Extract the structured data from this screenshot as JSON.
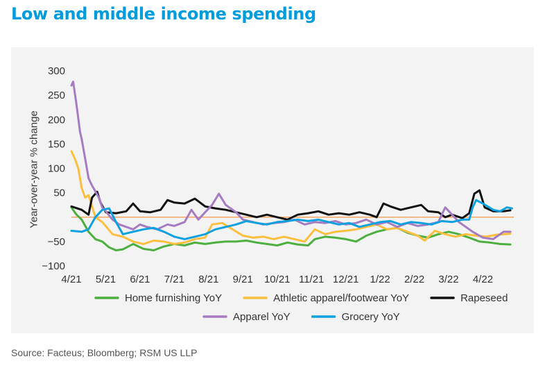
{
  "title": "Low and middle income spending",
  "source": "Source: Facteus; Bloomberg; RSM US LLP",
  "chart_data": {
    "type": "line",
    "ylabel": "Year-over-year % change",
    "xlabel": "",
    "ylim": [
      -100,
      300
    ],
    "yticks": [
      300,
      250,
      200,
      150,
      100,
      50,
      -50,
      -100
    ],
    "xlim": [
      0,
      12.9
    ],
    "xticks": [
      {
        "x": 0,
        "label": "4/21"
      },
      {
        "x": 1,
        "label": "5/21"
      },
      {
        "x": 2,
        "label": "6/21"
      },
      {
        "x": 3,
        "label": "7/21"
      },
      {
        "x": 4,
        "label": "8/21"
      },
      {
        "x": 5,
        "label": "9/21"
      },
      {
        "x": 6,
        "label": "10/21"
      },
      {
        "x": 7,
        "label": "11/21"
      },
      {
        "x": 8,
        "label": "12/21"
      },
      {
        "x": 9,
        "label": "1/22"
      },
      {
        "x": 10,
        "label": "2/22"
      },
      {
        "x": 11,
        "label": "3/22"
      },
      {
        "x": 12,
        "label": "4/22"
      }
    ],
    "zero_line_color": "#f2a766",
    "grid": false,
    "legend_position": "bottom",
    "series": [
      {
        "name": "Home furnishing YoY",
        "color": "#4caf3f",
        "legend_row": 0,
        "points": [
          [
            0,
            20
          ],
          [
            0.15,
            5
          ],
          [
            0.3,
            -5
          ],
          [
            0.5,
            -30
          ],
          [
            0.7,
            -45
          ],
          [
            0.9,
            -50
          ],
          [
            1.1,
            -62
          ],
          [
            1.3,
            -68
          ],
          [
            1.5,
            -66
          ],
          [
            1.8,
            -55
          ],
          [
            2.1,
            -65
          ],
          [
            2.4,
            -68
          ],
          [
            2.7,
            -60
          ],
          [
            3.0,
            -55
          ],
          [
            3.3,
            -58
          ],
          [
            3.6,
            -52
          ],
          [
            3.9,
            -55
          ],
          [
            4.2,
            -52
          ],
          [
            4.5,
            -50
          ],
          [
            4.8,
            -50
          ],
          [
            5.1,
            -48
          ],
          [
            5.4,
            -52
          ],
          [
            5.7,
            -55
          ],
          [
            6.0,
            -58
          ],
          [
            6.3,
            -52
          ],
          [
            6.6,
            -56
          ],
          [
            6.9,
            -58
          ],
          [
            7.1,
            -45
          ],
          [
            7.4,
            -40
          ],
          [
            7.7,
            -42
          ],
          [
            8.0,
            -45
          ],
          [
            8.3,
            -50
          ],
          [
            8.6,
            -38
          ],
          [
            8.9,
            -30
          ],
          [
            9.2,
            -25
          ],
          [
            9.5,
            -22
          ],
          [
            9.8,
            -32
          ],
          [
            10.1,
            -38
          ],
          [
            10.4,
            -42
          ],
          [
            10.7,
            -35
          ],
          [
            11.0,
            -30
          ],
          [
            11.3,
            -35
          ],
          [
            11.6,
            -42
          ],
          [
            11.9,
            -50
          ],
          [
            12.2,
            -52
          ],
          [
            12.5,
            -55
          ],
          [
            12.8,
            -56
          ]
        ]
      },
      {
        "name": "Athletic apparel/footwear YoY",
        "color": "#fbbf3d",
        "legend_row": 0,
        "points": [
          [
            0,
            135
          ],
          [
            0.1,
            120
          ],
          [
            0.2,
            100
          ],
          [
            0.3,
            60
          ],
          [
            0.4,
            40
          ],
          [
            0.5,
            45
          ],
          [
            0.7,
            0
          ],
          [
            0.9,
            -10
          ],
          [
            1.2,
            -35
          ],
          [
            1.5,
            -40
          ],
          [
            1.8,
            -50
          ],
          [
            2.1,
            -55
          ],
          [
            2.4,
            -48
          ],
          [
            2.7,
            -50
          ],
          [
            3.0,
            -55
          ],
          [
            3.3,
            -52
          ],
          [
            3.6,
            -45
          ],
          [
            3.9,
            -42
          ],
          [
            4.1,
            -15
          ],
          [
            4.4,
            -12
          ],
          [
            4.7,
            -25
          ],
          [
            5.0,
            -38
          ],
          [
            5.3,
            -42
          ],
          [
            5.6,
            -40
          ],
          [
            5.9,
            -45
          ],
          [
            6.2,
            -40
          ],
          [
            6.5,
            -45
          ],
          [
            6.8,
            -50
          ],
          [
            7.1,
            -25
          ],
          [
            7.4,
            -35
          ],
          [
            7.7,
            -30
          ],
          [
            8.0,
            -28
          ],
          [
            8.3,
            -25
          ],
          [
            8.6,
            -20
          ],
          [
            8.9,
            -15
          ],
          [
            9.2,
            -25
          ],
          [
            9.5,
            -22
          ],
          [
            9.8,
            -30
          ],
          [
            10.1,
            -38
          ],
          [
            10.3,
            -48
          ],
          [
            10.6,
            -28
          ],
          [
            10.9,
            -35
          ],
          [
            11.2,
            -40
          ],
          [
            11.5,
            -35
          ],
          [
            11.8,
            -38
          ],
          [
            12.1,
            -40
          ],
          [
            12.4,
            -36
          ],
          [
            12.8,
            -34
          ]
        ]
      },
      {
        "name": "Rapeseed",
        "color": "#111111",
        "legend_row": 0,
        "points": [
          [
            0,
            22
          ],
          [
            0.3,
            15
          ],
          [
            0.5,
            5
          ],
          [
            0.6,
            40
          ],
          [
            0.75,
            52
          ],
          [
            0.85,
            30
          ],
          [
            1.0,
            10
          ],
          [
            1.3,
            8
          ],
          [
            1.6,
            12
          ],
          [
            1.8,
            28
          ],
          [
            2.0,
            12
          ],
          [
            2.3,
            10
          ],
          [
            2.6,
            15
          ],
          [
            2.8,
            35
          ],
          [
            3.0,
            30
          ],
          [
            3.3,
            28
          ],
          [
            3.6,
            38
          ],
          [
            3.9,
            22
          ],
          [
            4.2,
            18
          ],
          [
            4.5,
            15
          ],
          [
            4.8,
            10
          ],
          [
            5.1,
            5
          ],
          [
            5.4,
            0
          ],
          [
            5.7,
            5
          ],
          [
            6.0,
            0
          ],
          [
            6.3,
            -5
          ],
          [
            6.6,
            5
          ],
          [
            6.9,
            8
          ],
          [
            7.2,
            12
          ],
          [
            7.5,
            5
          ],
          [
            7.8,
            8
          ],
          [
            8.1,
            5
          ],
          [
            8.4,
            10
          ],
          [
            8.7,
            5
          ],
          [
            8.9,
            0
          ],
          [
            9.1,
            28
          ],
          [
            9.3,
            22
          ],
          [
            9.6,
            15
          ],
          [
            9.9,
            20
          ],
          [
            10.2,
            25
          ],
          [
            10.4,
            12
          ],
          [
            10.7,
            10
          ],
          [
            10.9,
            0
          ],
          [
            11.1,
            5
          ],
          [
            11.4,
            -2
          ],
          [
            11.6,
            8
          ],
          [
            11.75,
            48
          ],
          [
            11.9,
            55
          ],
          [
            12.05,
            20
          ],
          [
            12.3,
            12
          ],
          [
            12.6,
            12
          ],
          [
            12.8,
            14
          ]
        ]
      },
      {
        "name": "Apparel YoY",
        "color": "#a57cc2",
        "legend_row": 1,
        "points": [
          [
            0,
            270
          ],
          [
            0.05,
            278
          ],
          [
            0.15,
            230
          ],
          [
            0.25,
            175
          ],
          [
            0.3,
            160
          ],
          [
            0.4,
            120
          ],
          [
            0.5,
            80
          ],
          [
            0.6,
            65
          ],
          [
            0.8,
            40
          ],
          [
            0.9,
            20
          ],
          [
            1.0,
            12
          ],
          [
            1.2,
            -5
          ],
          [
            1.4,
            -15
          ],
          [
            1.6,
            -20
          ],
          [
            1.8,
            -25
          ],
          [
            2.0,
            -15
          ],
          [
            2.2,
            -20
          ],
          [
            2.5,
            -25
          ],
          [
            2.8,
            -15
          ],
          [
            3.0,
            -18
          ],
          [
            3.3,
            -10
          ],
          [
            3.5,
            15
          ],
          [
            3.7,
            -5
          ],
          [
            3.9,
            10
          ],
          [
            4.1,
            25
          ],
          [
            4.3,
            48
          ],
          [
            4.5,
            25
          ],
          [
            4.8,
            10
          ],
          [
            5.0,
            -5
          ],
          [
            5.3,
            -10
          ],
          [
            5.6,
            -15
          ],
          [
            5.9,
            -12
          ],
          [
            6.2,
            -10
          ],
          [
            6.5,
            -5
          ],
          [
            6.8,
            -15
          ],
          [
            7.1,
            -10
          ],
          [
            7.4,
            -12
          ],
          [
            7.7,
            -8
          ],
          [
            8.0,
            -15
          ],
          [
            8.3,
            -12
          ],
          [
            8.6,
            -5
          ],
          [
            8.9,
            -15
          ],
          [
            9.2,
            -10
          ],
          [
            9.5,
            -20
          ],
          [
            9.8,
            -12
          ],
          [
            10.1,
            -18
          ],
          [
            10.4,
            -15
          ],
          [
            10.7,
            -10
          ],
          [
            10.9,
            20
          ],
          [
            11.1,
            5
          ],
          [
            11.3,
            -10
          ],
          [
            11.5,
            -20
          ],
          [
            11.7,
            -30
          ],
          [
            12.0,
            -42
          ],
          [
            12.3,
            -45
          ],
          [
            12.6,
            -30
          ],
          [
            12.8,
            -30
          ]
        ]
      },
      {
        "name": "Grocery YoY",
        "color": "#0ea1e0",
        "legend_row": 1,
        "points": [
          [
            0,
            -28
          ],
          [
            0.3,
            -30
          ],
          [
            0.5,
            -25
          ],
          [
            0.7,
            0
          ],
          [
            0.9,
            15
          ],
          [
            1.1,
            18
          ],
          [
            1.3,
            -10
          ],
          [
            1.5,
            -35
          ],
          [
            1.8,
            -30
          ],
          [
            2.1,
            -25
          ],
          [
            2.4,
            -22
          ],
          [
            2.7,
            -30
          ],
          [
            3.0,
            -40
          ],
          [
            3.3,
            -45
          ],
          [
            3.6,
            -40
          ],
          [
            3.9,
            -35
          ],
          [
            4.2,
            -25
          ],
          [
            4.5,
            -20
          ],
          [
            4.8,
            -15
          ],
          [
            5.1,
            -8
          ],
          [
            5.4,
            -12
          ],
          [
            5.7,
            -15
          ],
          [
            6.0,
            -10
          ],
          [
            6.3,
            -8
          ],
          [
            6.6,
            -5
          ],
          [
            6.9,
            -8
          ],
          [
            7.2,
            -5
          ],
          [
            7.5,
            -10
          ],
          [
            7.8,
            -15
          ],
          [
            8.1,
            -12
          ],
          [
            8.4,
            -20
          ],
          [
            8.7,
            -15
          ],
          [
            9.0,
            -10
          ],
          [
            9.3,
            -8
          ],
          [
            9.6,
            -15
          ],
          [
            9.9,
            -10
          ],
          [
            10.2,
            -12
          ],
          [
            10.5,
            -15
          ],
          [
            10.8,
            -8
          ],
          [
            11.1,
            -10
          ],
          [
            11.4,
            -5
          ],
          [
            11.6,
            -5
          ],
          [
            11.7,
            20
          ],
          [
            11.8,
            35
          ],
          [
            12.0,
            28
          ],
          [
            12.3,
            15
          ],
          [
            12.5,
            12
          ],
          [
            12.7,
            20
          ],
          [
            12.85,
            18
          ]
        ]
      }
    ]
  }
}
